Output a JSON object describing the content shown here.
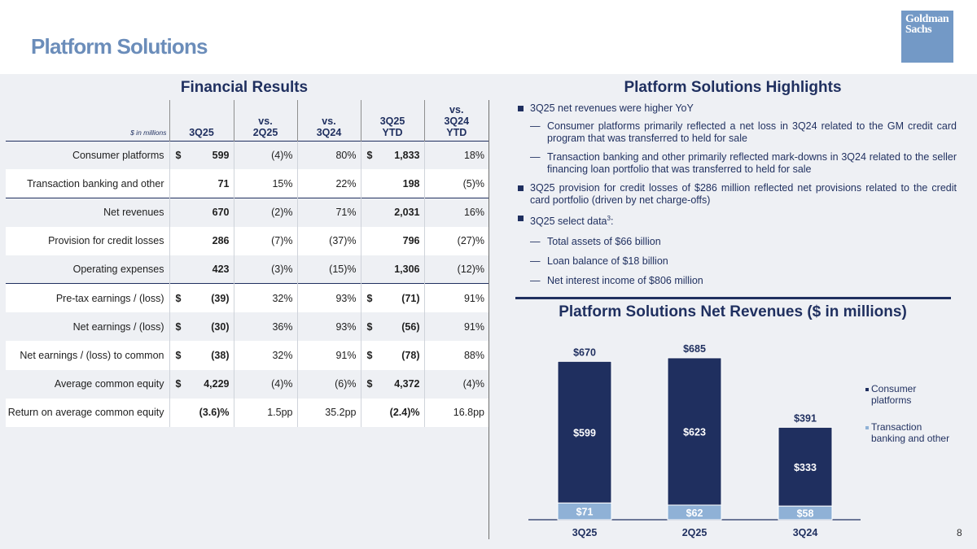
{
  "header": {
    "title": "Platform Solutions",
    "logo_text": [
      "Goldman",
      "Sachs"
    ]
  },
  "financial_results": {
    "title": "Financial Results",
    "units": "$ in millions",
    "columns": [
      "3Q25",
      "vs.\n2Q25",
      "vs.\n3Q24",
      "3Q25\nYTD",
      "vs.\n3Q24\nYTD"
    ],
    "rows": [
      {
        "label": "Consumer platforms",
        "q": "599",
        "q_dollar": "$",
        "vs2q": "(4)%",
        "vs3q": "80%",
        "ytd": "1,833",
        "ytd_dollar": "$",
        "vsytd": "18%"
      },
      {
        "label": "Transaction banking and other",
        "q": "71",
        "q_dollar": "",
        "vs2q": "15%",
        "vs3q": "22%",
        "ytd": "198",
        "ytd_dollar": "",
        "vsytd": "(5)%"
      },
      {
        "label": "Net revenues",
        "q": "670",
        "q_dollar": "",
        "vs2q": "(2)%",
        "vs3q": "71%",
        "ytd": "2,031",
        "ytd_dollar": "",
        "vsytd": "16%"
      },
      {
        "label": "Provision for credit losses",
        "q": "286",
        "q_dollar": "",
        "vs2q": "(7)%",
        "vs3q": "(37)%",
        "ytd": "796",
        "ytd_dollar": "",
        "vsytd": "(27)%"
      },
      {
        "label": "Operating expenses",
        "q": "423",
        "q_dollar": "",
        "vs2q": "(3)%",
        "vs3q": "(15)%",
        "ytd": "1,306",
        "ytd_dollar": "",
        "vsytd": "(12)%"
      },
      {
        "label": "Pre-tax earnings / (loss)",
        "q": "(39)",
        "q_dollar": "$",
        "vs2q": "32%",
        "vs3q": "93%",
        "ytd": "(71)",
        "ytd_dollar": "$",
        "vsytd": "91%"
      },
      {
        "label": "Net earnings / (loss)",
        "q": "(30)",
        "q_dollar": "$",
        "vs2q": "36%",
        "vs3q": "93%",
        "ytd": "(56)",
        "ytd_dollar": "$",
        "vsytd": "91%"
      },
      {
        "label": "Net earnings / (loss) to common",
        "q": "(38)",
        "q_dollar": "$",
        "vs2q": "32%",
        "vs3q": "91%",
        "ytd": "(78)",
        "ytd_dollar": "$",
        "vsytd": "88%"
      },
      {
        "label": "Average common equity",
        "q": "4,229",
        "q_dollar": "$",
        "vs2q": "(4)%",
        "vs3q": "(6)%",
        "ytd": "4,372",
        "ytd_dollar": "$",
        "vsytd": "(4)%"
      },
      {
        "label": "Return on average common equity",
        "q": "(3.6)%",
        "q_dollar": "",
        "vs2q": "1.5pp",
        "vs3q": "35.2pp",
        "ytd": "(2.4)%",
        "ytd_dollar": "",
        "vsytd": "16.8pp"
      }
    ]
  },
  "highlights": {
    "title": "Platform Solutions Highlights",
    "b1": "3Q25 net revenues were higher YoY",
    "b1_s1": "Consumer platforms primarily reflected a net loss in 3Q24 related to the GM credit card program that was transferred to held for sale",
    "b1_s2": "Transaction banking and other primarily reflected mark-downs in 3Q24 related to the seller financing loan portfolio that was transferred to held for sale",
    "b2": "3Q25 provision for credit losses of $286 million reflected net provisions related to the credit card portfolio (driven by net charge-offs)",
    "b3": "3Q25 select data",
    "b3_sup": "3",
    "b3_colon": ":",
    "b3_s1": "Total assets of $66 billion",
    "b3_s2": "Loan balance of $18 billion",
    "b3_s3": "Net interest income of $806 million"
  },
  "chart_data": {
    "type": "bar",
    "stacked": true,
    "title": "Platform Solutions Net Revenues ($ in millions)",
    "categories": [
      "3Q25",
      "2Q25",
      "3Q24"
    ],
    "series": [
      {
        "name": "Transaction banking and other",
        "values": [
          71,
          62,
          58
        ],
        "labels": [
          "$71",
          "$62",
          "$58"
        ],
        "color": "#8fb1d6"
      },
      {
        "name": "Consumer platforms",
        "values": [
          599,
          623,
          333
        ],
        "labels": [
          "$599",
          "$623",
          "$333"
        ],
        "color": "#1f2f5f"
      }
    ],
    "totals": [
      670,
      685,
      391
    ],
    "total_labels": [
      "$670",
      "$685",
      "$391"
    ],
    "legend": [
      "Consumer platforms",
      "Transaction banking and other"
    ],
    "legend_position": "right",
    "ylim": [
      0,
      700
    ]
  },
  "page_number": "8"
}
